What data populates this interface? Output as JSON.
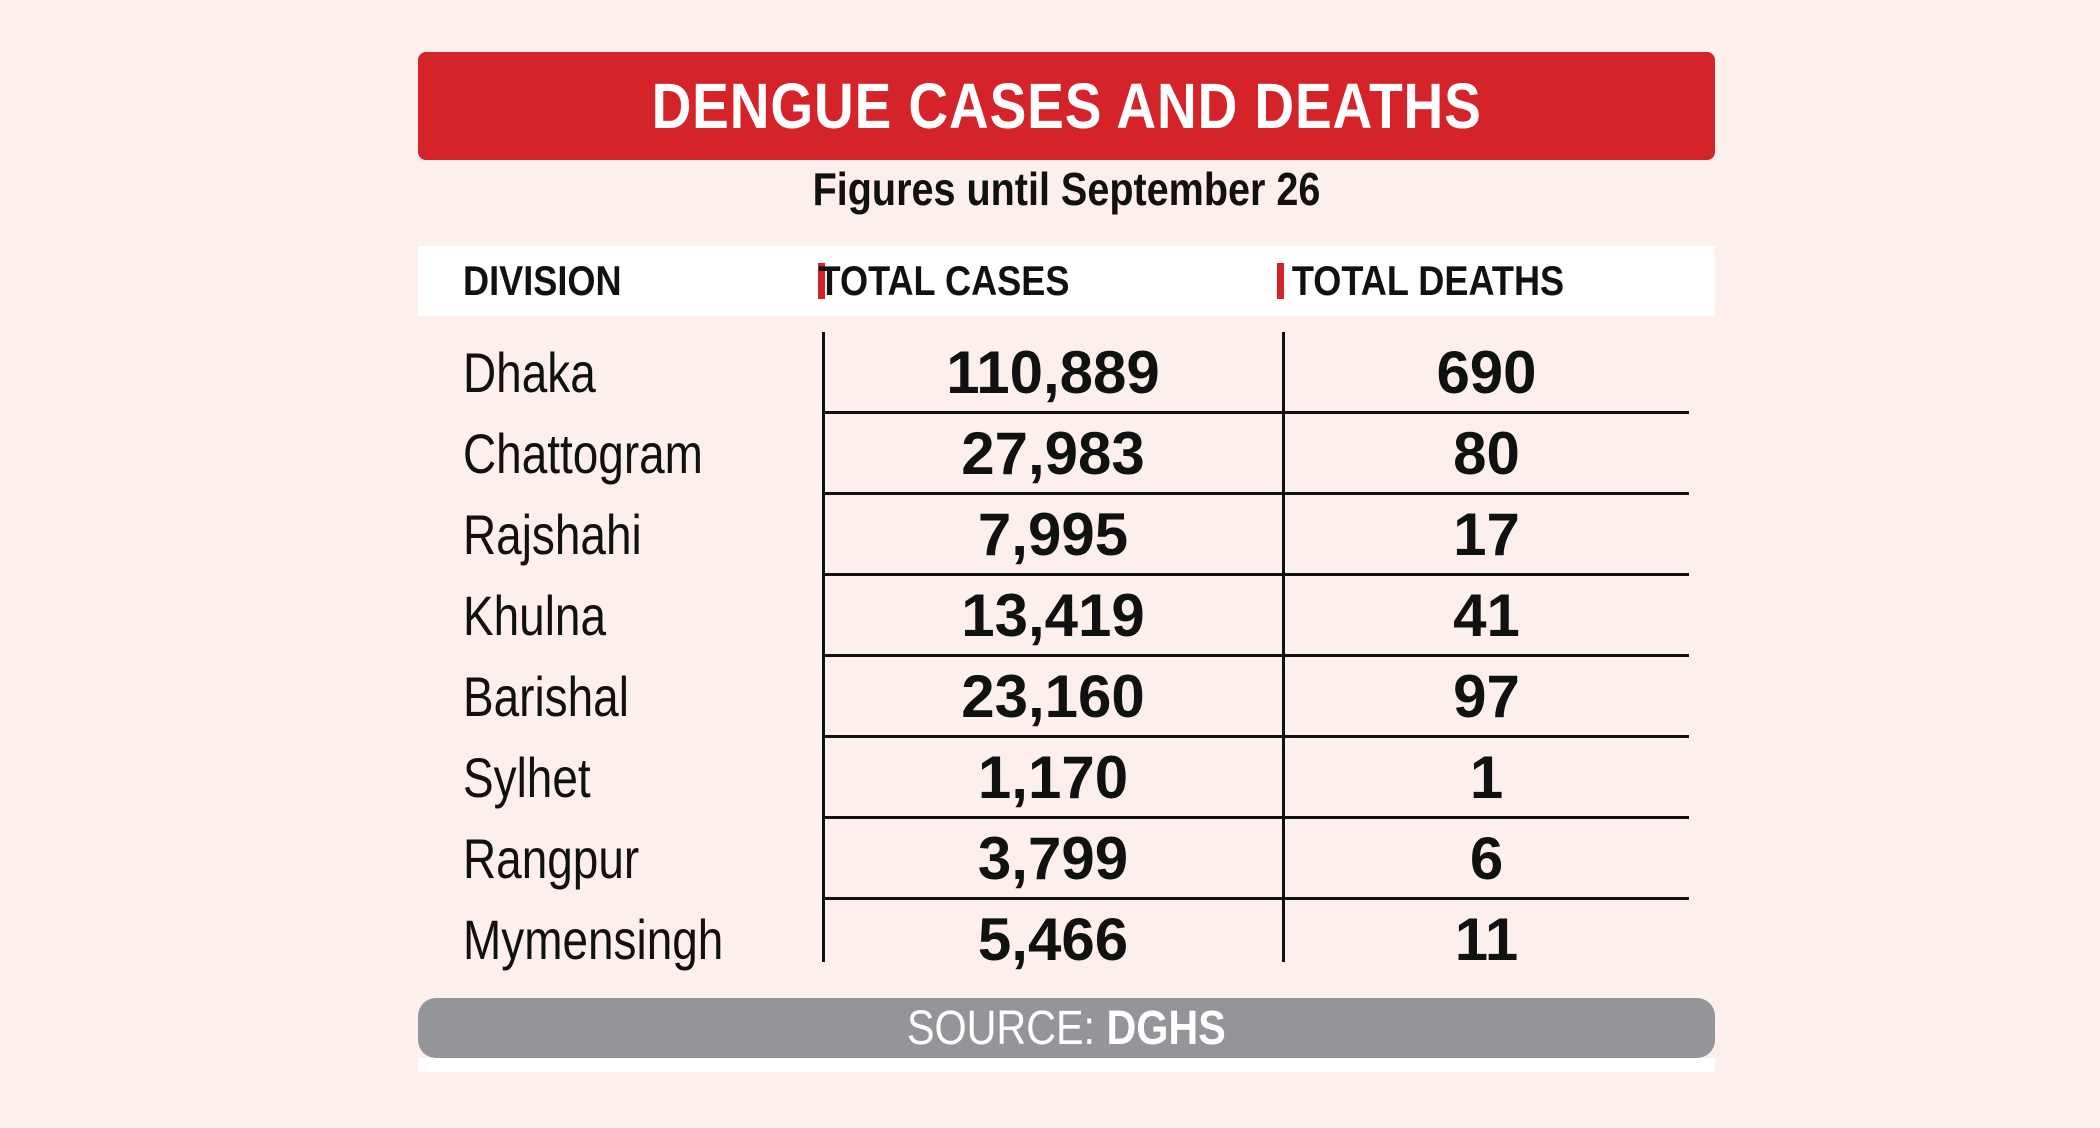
{
  "title": "DENGUE CASES AND DEATHS",
  "subtitle": "Figures until September 26",
  "columns": {
    "division": "DIVISION",
    "total_cases": "TOTAL  CASES",
    "total_deaths": "TOTAL DEATHS"
  },
  "source": {
    "label": "SOURCE: ",
    "value": "DGHS"
  },
  "colors": {
    "title_bar": "#d5232a",
    "separator": "#d5232a",
    "source_bar": "#939598",
    "background": "#fdf0ec"
  },
  "chart_data": {
    "type": "table",
    "title": "DENGUE CASES AND DEATHS",
    "subtitle": "Figures until September 26",
    "headers": [
      "DIVISION",
      "TOTAL  CASES",
      "TOTAL DEATHS"
    ],
    "rows": [
      {
        "division": "Dhaka",
        "cases": "110,889",
        "deaths": "690"
      },
      {
        "division": "Chattogram",
        "cases": "27,983",
        "deaths": "80"
      },
      {
        "division": "Rajshahi",
        "cases": "7,995",
        "deaths": "17"
      },
      {
        "division": "Khulna",
        "cases": "13,419",
        "deaths": "41"
      },
      {
        "division": "Barishal",
        "cases": "23,160",
        "deaths": "97"
      },
      {
        "division": "Sylhet",
        "cases": "1,170",
        "deaths": "1"
      },
      {
        "division": "Rangpur",
        "cases": "3,799",
        "deaths": "6"
      },
      {
        "division": "Mymensingh",
        "cases": "5,466",
        "deaths": "11"
      }
    ],
    "source": "SOURCE: DGHS"
  }
}
